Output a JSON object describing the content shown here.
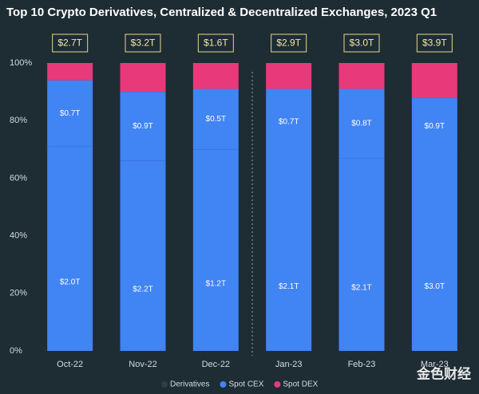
{
  "chart_data": {
    "type": "stacked_bar_percent",
    "title": "Top 10 Crypto Derivatives, Centralized & Decentralized Exchanges,  2023 Q1",
    "categories": [
      "Oct-22",
      "Nov-22",
      "Dec-22",
      "Jan-23",
      "Feb-23",
      "Mar-23"
    ],
    "series": [
      {
        "name": "Derivatives",
        "color": "#4184f3",
        "values": [
          71,
          66,
          70,
          68,
          67,
          68
        ],
        "segment_labels": [
          "$2.0T",
          "$2.2T",
          "$1.2T",
          "$2.1T",
          "$2.1T",
          "$3.0T"
        ]
      },
      {
        "name": "Spot CEX",
        "color": "#4184f3",
        "values": [
          23,
          24,
          21,
          23,
          24,
          20
        ],
        "segment_labels": [
          "$0.7T",
          "$0.9T",
          "$0.5T",
          "$0.7T",
          "$0.8T",
          "$0.9T"
        ]
      },
      {
        "name": "Spot DEX",
        "color": "#e8397a",
        "values": [
          6,
          10,
          9,
          9,
          9,
          12
        ]
      }
    ],
    "totals": [
      "$2.7T",
      "$3.2T",
      "$1.6T",
      "$2.9T",
      "$3.0T",
      "$3.9T"
    ],
    "ylim": [
      0,
      100
    ],
    "yticks": [
      {
        "value": 0,
        "label": "0%"
      },
      {
        "value": 20,
        "label": "20%"
      },
      {
        "value": 40,
        "label": "40%"
      },
      {
        "value": 60,
        "label": "60%"
      },
      {
        "value": 80,
        "label": "80%"
      },
      {
        "value": 100,
        "label": "100%"
      }
    ],
    "legend": "bottom",
    "watermark": "金色财经"
  }
}
